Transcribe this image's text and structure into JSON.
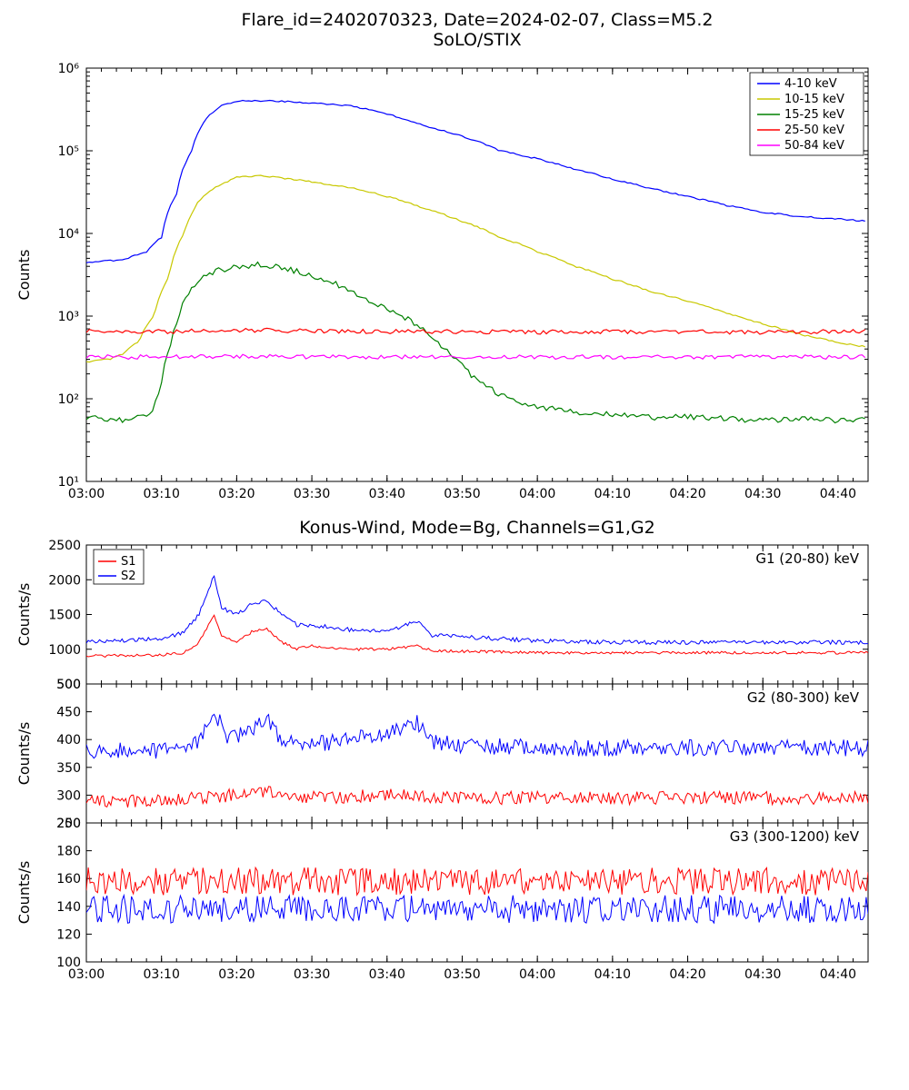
{
  "main_title": "Flare_id=2402070323, Date=2024-02-07, Class=M5.2",
  "panel1": {
    "title": "SoLO/STIX",
    "ylabel": "Counts",
    "ylim": [
      10,
      1000000
    ],
    "type": "line-log",
    "xticks": [
      "03:00",
      "03:10",
      "03:20",
      "03:30",
      "03:40",
      "03:50",
      "04:00",
      "04:10",
      "04:20",
      "04:30",
      "04:40"
    ],
    "yticks": [
      10,
      100,
      1000,
      10000,
      100000,
      1000000
    ],
    "ytick_labels": [
      "10¹",
      "10²",
      "10³",
      "10⁴",
      "10⁵",
      "10⁶"
    ],
    "series": [
      {
        "name": "4-10 keV",
        "color": "#0000ff",
        "data": [
          [
            0,
            4500
          ],
          [
            5,
            4800
          ],
          [
            8,
            6000
          ],
          [
            10,
            9000
          ],
          [
            12,
            30000
          ],
          [
            14,
            100000
          ],
          [
            16,
            250000
          ],
          [
            18,
            350000
          ],
          [
            20,
            400000
          ],
          [
            25,
            400000
          ],
          [
            30,
            380000
          ],
          [
            35,
            350000
          ],
          [
            40,
            280000
          ],
          [
            45,
            200000
          ],
          [
            50,
            150000
          ],
          [
            55,
            100000
          ],
          [
            60,
            80000
          ],
          [
            65,
            60000
          ],
          [
            70,
            45000
          ],
          [
            75,
            35000
          ],
          [
            80,
            28000
          ],
          [
            85,
            22000
          ],
          [
            90,
            18000
          ],
          [
            95,
            16000
          ],
          [
            100,
            15000
          ],
          [
            104,
            14000
          ]
        ]
      },
      {
        "name": "10-15 keV",
        "color": "#c8c800",
        "data": [
          [
            0,
            280
          ],
          [
            3,
            300
          ],
          [
            5,
            350
          ],
          [
            7,
            500
          ],
          [
            9,
            1000
          ],
          [
            11,
            3000
          ],
          [
            13,
            10000
          ],
          [
            15,
            25000
          ],
          [
            17,
            35000
          ],
          [
            20,
            48000
          ],
          [
            23,
            50000
          ],
          [
            25,
            48000
          ],
          [
            30,
            42000
          ],
          [
            35,
            36000
          ],
          [
            40,
            28000
          ],
          [
            45,
            20000
          ],
          [
            50,
            14000
          ],
          [
            55,
            9000
          ],
          [
            60,
            6000
          ],
          [
            65,
            4000
          ],
          [
            70,
            2800
          ],
          [
            75,
            2000
          ],
          [
            80,
            1500
          ],
          [
            85,
            1100
          ],
          [
            90,
            800
          ],
          [
            95,
            600
          ],
          [
            100,
            480
          ],
          [
            104,
            420
          ]
        ]
      },
      {
        "name": "15-25 keV",
        "color": "#008000",
        "data": [
          [
            0,
            60
          ],
          [
            3,
            58
          ],
          [
            5,
            55
          ],
          [
            7,
            60
          ],
          [
            8,
            65
          ],
          [
            9,
            80
          ],
          [
            10,
            150
          ],
          [
            11,
            400
          ],
          [
            12,
            800
          ],
          [
            13,
            1500
          ],
          [
            14,
            2200
          ],
          [
            15,
            2800
          ],
          [
            17,
            3500
          ],
          [
            20,
            4000
          ],
          [
            23,
            4200
          ],
          [
            25,
            4000
          ],
          [
            28,
            3500
          ],
          [
            30,
            3000
          ],
          [
            33,
            2500
          ],
          [
            35,
            2000
          ],
          [
            38,
            1500
          ],
          [
            40,
            1200
          ],
          [
            43,
            900
          ],
          [
            45,
            650
          ],
          [
            47,
            450
          ],
          [
            49,
            300
          ],
          [
            51,
            200
          ],
          [
            53,
            150
          ],
          [
            55,
            110
          ],
          [
            58,
            90
          ],
          [
            60,
            80
          ],
          [
            65,
            70
          ],
          [
            70,
            65
          ],
          [
            75,
            60
          ],
          [
            80,
            60
          ],
          [
            85,
            58
          ],
          [
            90,
            55
          ],
          [
            95,
            58
          ],
          [
            100,
            55
          ],
          [
            104,
            55
          ]
        ]
      },
      {
        "name": "25-50 keV",
        "color": "#ff0000",
        "data": [
          [
            0,
            650
          ],
          [
            10,
            650
          ],
          [
            20,
            680
          ],
          [
            30,
            660
          ],
          [
            40,
            650
          ],
          [
            50,
            650
          ],
          [
            60,
            640
          ],
          [
            70,
            650
          ],
          [
            80,
            650
          ],
          [
            90,
            640
          ],
          [
            100,
            650
          ],
          [
            104,
            650
          ]
        ]
      },
      {
        "name": "50-84 keV",
        "color": "#ff00ff",
        "data": [
          [
            0,
            320
          ],
          [
            10,
            320
          ],
          [
            20,
            330
          ],
          [
            30,
            320
          ],
          [
            40,
            320
          ],
          [
            50,
            320
          ],
          [
            60,
            320
          ],
          [
            70,
            320
          ],
          [
            80,
            320
          ],
          [
            90,
            320
          ],
          [
            100,
            320
          ],
          [
            104,
            320
          ]
        ]
      }
    ]
  },
  "panel2_title": "Konus-Wind, Mode=Bg, Channels=G1,G2",
  "panels_bottom": [
    {
      "ylabel": "Counts/s",
      "label": "G1 (20-80) keV",
      "ylim": [
        500,
        2500
      ],
      "yticks": [
        500,
        1000,
        1500,
        2000,
        2500
      ],
      "legend": [
        {
          "name": "S1",
          "color": "#ff0000"
        },
        {
          "name": "S2",
          "color": "#0000ff"
        }
      ],
      "series": [
        {
          "color": "#ff0000",
          "base": [
            [
              0,
              900
            ],
            [
              10,
              920
            ],
            [
              13,
              950
            ],
            [
              15,
              1100
            ],
            [
              16,
              1300
            ],
            [
              17,
              1500
            ],
            [
              18,
              1200
            ],
            [
              20,
              1100
            ],
            [
              22,
              1250
            ],
            [
              24,
              1300
            ],
            [
              26,
              1100
            ],
            [
              28,
              1000
            ],
            [
              30,
              1050
            ],
            [
              35,
              1000
            ],
            [
              40,
              1000
            ],
            [
              44,
              1050
            ],
            [
              46,
              980
            ],
            [
              50,
              970
            ],
            [
              60,
              950
            ],
            [
              70,
              950
            ],
            [
              80,
              950
            ],
            [
              90,
              950
            ],
            [
              100,
              950
            ],
            [
              104,
              950
            ]
          ],
          "noise": 20
        },
        {
          "color": "#0000ff",
          "base": [
            [
              0,
              1100
            ],
            [
              10,
              1150
            ],
            [
              13,
              1250
            ],
            [
              15,
              1500
            ],
            [
              16,
              1800
            ],
            [
              17,
              2050
            ],
            [
              18,
              1600
            ],
            [
              20,
              1500
            ],
            [
              22,
              1650
            ],
            [
              24,
              1700
            ],
            [
              26,
              1500
            ],
            [
              28,
              1350
            ],
            [
              30,
              1350
            ],
            [
              35,
              1280
            ],
            [
              40,
              1250
            ],
            [
              44,
              1400
            ],
            [
              46,
              1200
            ],
            [
              50,
              1180
            ],
            [
              60,
              1120
            ],
            [
              70,
              1100
            ],
            [
              80,
              1100
            ],
            [
              90,
              1100
            ],
            [
              100,
              1100
            ],
            [
              104,
              1100
            ]
          ],
          "noise": 30
        }
      ]
    },
    {
      "ylabel": "Counts/s",
      "label": "G2 (80-300) keV",
      "ylim": [
        250,
        500
      ],
      "yticks": [
        250,
        300,
        350,
        400,
        450,
        500
      ],
      "series": [
        {
          "color": "#ff0000",
          "base": [
            [
              0,
              290
            ],
            [
              10,
              290
            ],
            [
              20,
              300
            ],
            [
              25,
              305
            ],
            [
              30,
              295
            ],
            [
              40,
              300
            ],
            [
              50,
              295
            ],
            [
              60,
              295
            ],
            [
              70,
              295
            ],
            [
              80,
              295
            ],
            [
              90,
              295
            ],
            [
              100,
              295
            ],
            [
              104,
              295
            ]
          ],
          "noise": 12
        },
        {
          "color": "#0000ff",
          "base": [
            [
              0,
              380
            ],
            [
              10,
              380
            ],
            [
              15,
              400
            ],
            [
              17,
              450
            ],
            [
              19,
              400
            ],
            [
              22,
              420
            ],
            [
              24,
              440
            ],
            [
              26,
              400
            ],
            [
              30,
              390
            ],
            [
              35,
              400
            ],
            [
              40,
              415
            ],
            [
              44,
              430
            ],
            [
              46,
              395
            ],
            [
              50,
              390
            ],
            [
              60,
              385
            ],
            [
              70,
              385
            ],
            [
              80,
              385
            ],
            [
              90,
              385
            ],
            [
              100,
              385
            ],
            [
              104,
              385
            ]
          ],
          "noise": 15
        }
      ]
    },
    {
      "ylabel": "Counts/s",
      "label": "G3 (300-1200) keV",
      "ylim": [
        100,
        200
      ],
      "yticks": [
        100,
        120,
        140,
        160,
        180,
        200
      ],
      "series": [
        {
          "color": "#ff0000",
          "base": [
            [
              0,
              158
            ],
            [
              20,
              158
            ],
            [
              40,
              158
            ],
            [
              60,
              158
            ],
            [
              80,
              158
            ],
            [
              104,
              158
            ]
          ],
          "noise": 10
        },
        {
          "color": "#0000ff",
          "base": [
            [
              0,
              138
            ],
            [
              20,
              138
            ],
            [
              40,
              138
            ],
            [
              60,
              138
            ],
            [
              80,
              138
            ],
            [
              104,
              138
            ]
          ],
          "noise": 10
        }
      ]
    }
  ],
  "xrange": [
    0,
    104
  ],
  "xticks_main": [
    0,
    10,
    20,
    30,
    40,
    50,
    60,
    70,
    80,
    90,
    100
  ],
  "background": "#ffffff",
  "axis_color": "#000000"
}
